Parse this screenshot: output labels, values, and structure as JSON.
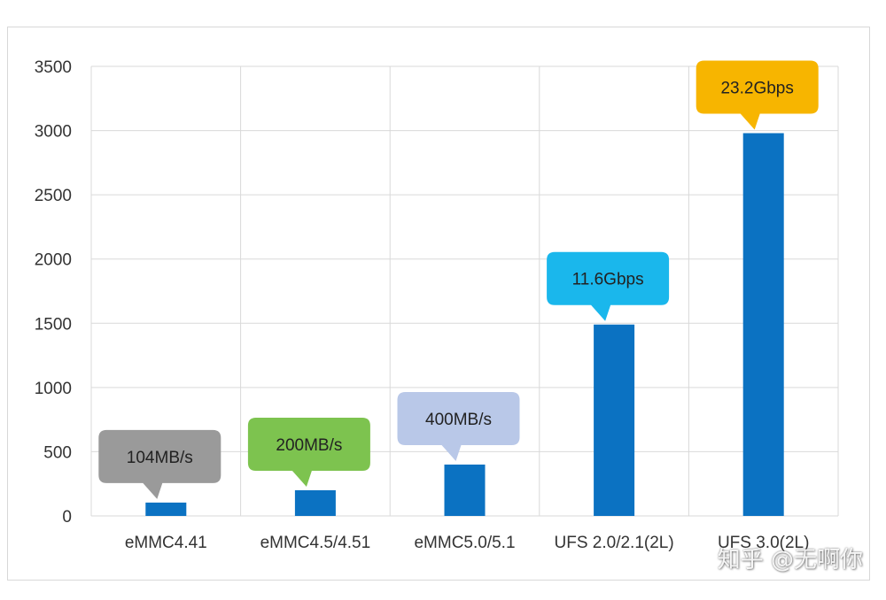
{
  "chart_data": {
    "type": "bar",
    "categories": [
      "eMMC4.41",
      "eMMC4.5/4.51",
      "eMMC5.0/5.1",
      "UFS 2.0/2.1(2L)",
      "UFS 3.0(2L)"
    ],
    "values": [
      104,
      200,
      400,
      1490,
      2980
    ],
    "data_labels": [
      "104MB/s",
      "200MB/s",
      "400MB/s",
      "11.6Gbps",
      "23.2Gbps"
    ],
    "label_colors": [
      "#9a9a9a",
      "#7dc34f",
      "#b9c8e8",
      "#1ab7ec",
      "#f7b500"
    ],
    "bar_color": "#0b72c2",
    "title": "",
    "xlabel": "",
    "ylabel": "",
    "ylim": [
      0,
      3500
    ],
    "yticks": [
      0,
      500,
      1000,
      1500,
      2000,
      2500,
      3000,
      3500
    ],
    "grid": true,
    "legend": "none"
  },
  "watermark": "知乎 @无啊你"
}
